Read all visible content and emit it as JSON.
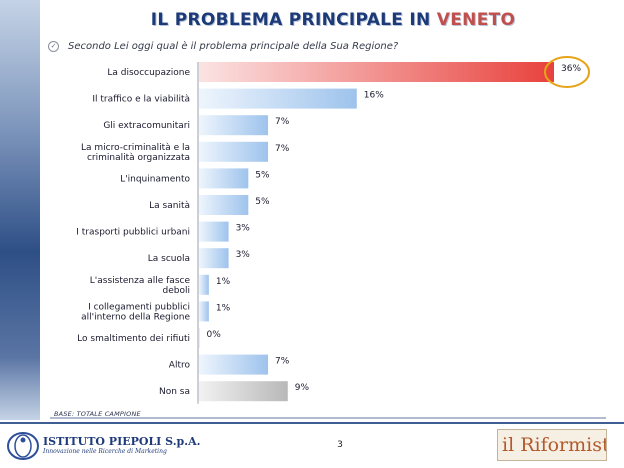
{
  "slide": {
    "title_prefix": "IL PROBLEMA PRINCIPALE IN ",
    "title_region": "VENETO",
    "question": "Secondo Lei oggi qual è il problema principale della Sua Regione?",
    "base_note": "BASE: TOTALE CAMPIONE",
    "page_number": "3"
  },
  "logos": {
    "left_name": "ISTITUTO PIEPOLI S.p.A.",
    "left_tagline": "Innovazione nelle Ricerche di Marketing",
    "right_name": "il Riformista"
  },
  "colors": {
    "title": "#1d3a78",
    "title_accent": "#c0504d",
    "bar_highlight": "#e8413c",
    "bar_default": "#9ec3ec",
    "bar_neutral": "#b8b8b8",
    "highlight_ring": "#e6a317",
    "footer_line": "#3f5e93"
  },
  "chart_data": {
    "type": "bar",
    "orientation": "horizontal",
    "categories": [
      [
        "La disoccupazione"
      ],
      [
        "Il traffico e la viabilità"
      ],
      [
        "Gli extracomunitari"
      ],
      [
        "La micro-criminalità e la",
        "criminalità organizzata"
      ],
      [
        "L'inquinamento"
      ],
      [
        "La sanità"
      ],
      [
        "I trasporti pubblici urbani"
      ],
      [
        "La scuola"
      ],
      [
        "L'assistenza alle fasce",
        "deboli"
      ],
      [
        "I collegamenti pubblici",
        "all'interno della Regione"
      ],
      [
        "Lo smaltimento dei rifiuti"
      ],
      [
        "Altro"
      ],
      [
        "Non sa"
      ]
    ],
    "values": [
      36,
      16,
      7,
      7,
      5,
      5,
      3,
      3,
      1,
      1,
      0,
      7,
      9
    ],
    "value_labels": [
      "36%",
      "16%",
      "7%",
      "7%",
      "5%",
      "5%",
      "3%",
      "3%",
      "1%",
      "1%",
      "0%",
      "7%",
      "9%"
    ],
    "styles": [
      "highlight",
      "default",
      "default",
      "default",
      "default",
      "default",
      "default",
      "default",
      "default",
      "default",
      "default",
      "default",
      "neutral"
    ],
    "circled_index": 0,
    "xlim": [
      0,
      36
    ]
  }
}
